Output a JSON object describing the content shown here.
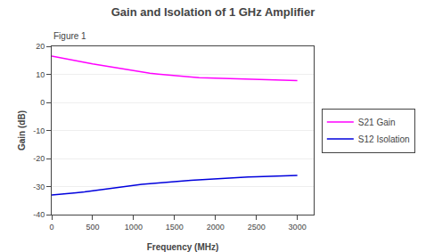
{
  "chart_data": {
    "type": "line",
    "title": "Gain and Isolation of 1 GHz Amplifier",
    "annotations": [
      "Figure 1"
    ],
    "x_label": "Frequency (MHz)",
    "y_label": "Gain (dB)",
    "x": [
      0,
      100,
      200,
      300,
      400,
      500,
      600,
      700,
      800,
      900,
      1000,
      1100,
      1200,
      1300,
      1400,
      1500,
      1600,
      1700,
      1800,
      1900,
      2000,
      2100,
      2200,
      2300,
      2400,
      2500,
      2600,
      2700,
      2800,
      2900,
      3000
    ],
    "series": [
      {
        "name": "S21 Gain",
        "color": "#ff00ff",
        "values": [
          16.5,
          16.0,
          15.4,
          14.9,
          14.3,
          13.7,
          13.2,
          12.7,
          12.2,
          11.7,
          11.2,
          10.8,
          10.4,
          10.1,
          9.8,
          9.5,
          9.2,
          9.0,
          8.8,
          8.7,
          8.6,
          8.5,
          8.4,
          8.3,
          8.2,
          8.1,
          8.0,
          7.9,
          7.9,
          7.8,
          7.8
        ]
      },
      {
        "name": "S12 Isolation",
        "color": "#0000dd",
        "values": [
          -33.0,
          -32.8,
          -32.5,
          -32.2,
          -31.9,
          -31.5,
          -31.1,
          -30.7,
          -30.3,
          -29.9,
          -29.5,
          -29.2,
          -29.0,
          -28.7,
          -28.5,
          -28.2,
          -28.0,
          -27.8,
          -27.6,
          -27.4,
          -27.2,
          -27.0,
          -26.9,
          -26.7,
          -26.6,
          -26.5,
          -26.4,
          -26.3,
          -26.2,
          -26.2,
          -26.0
        ]
      }
    ],
    "xlim": [
      0,
      3200
    ],
    "ylim": [
      -40,
      20
    ],
    "xticks": [
      0,
      500,
      1000,
      1500,
      2000,
      2500,
      3000
    ],
    "yticks": [
      -40,
      -30,
      -20,
      -10,
      0,
      10,
      20
    ],
    "grid": "y",
    "legend": "right"
  }
}
